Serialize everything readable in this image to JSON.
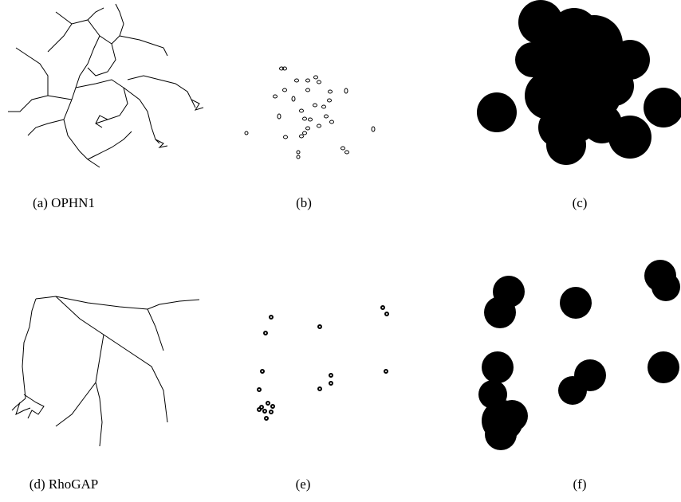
{
  "panels": [
    {
      "caption": "(a) OPHN1"
    },
    {
      "caption": "(b)"
    },
    {
      "caption": "(c)"
    },
    {
      "caption": "(d) RhoGAP"
    },
    {
      "caption": "(e)"
    },
    {
      "caption": "(f)"
    }
  ]
}
